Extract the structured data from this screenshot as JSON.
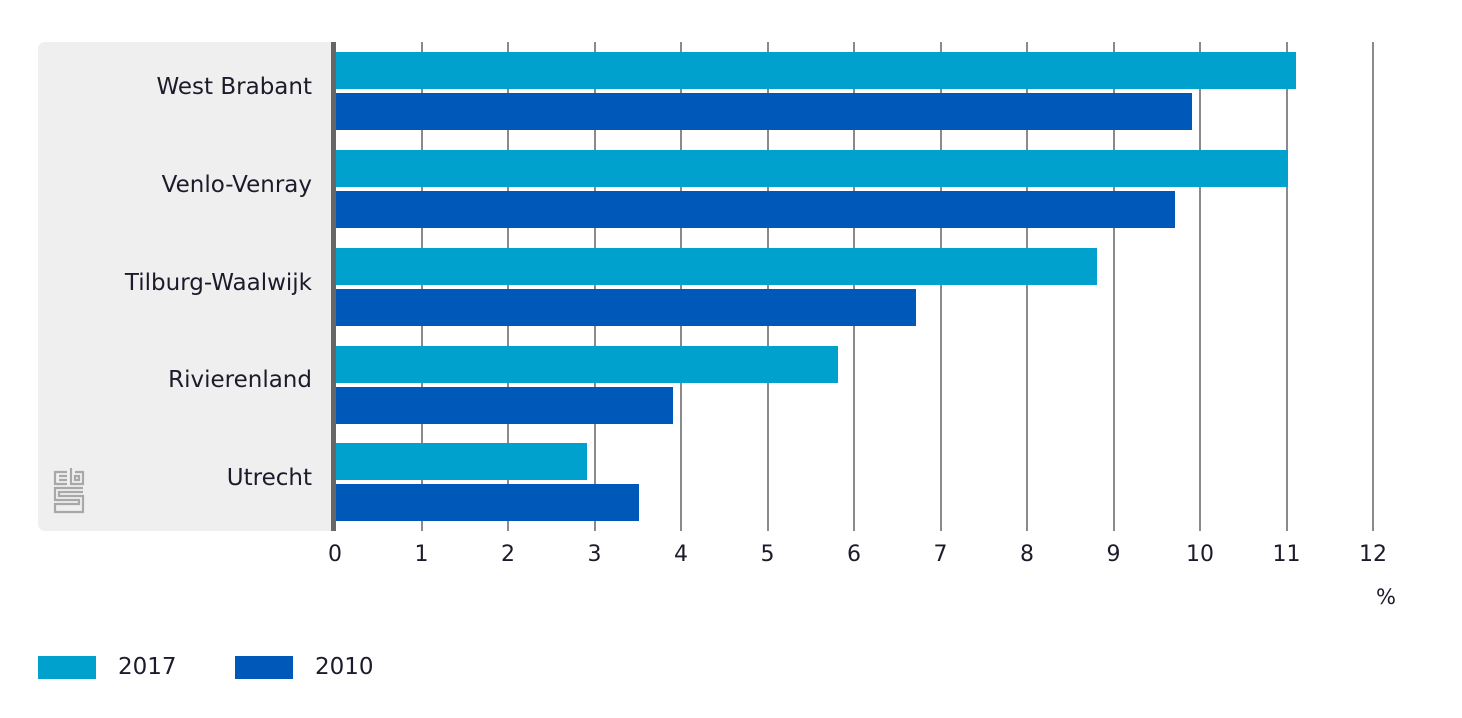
{
  "chart_data": {
    "type": "bar",
    "orientation": "horizontal",
    "title": "",
    "xlabel": "%",
    "ylabel": "",
    "categories": [
      "West Brabant",
      "Venlo-Venray",
      "Tilburg-Waalwijk",
      "Rivierenland",
      "Utrecht"
    ],
    "series": [
      {
        "name": "2017",
        "color": "#00a1cd",
        "values": [
          11.1,
          11.0,
          8.8,
          5.8,
          2.9
        ]
      },
      {
        "name": "2010",
        "color": "#0058b8",
        "values": [
          9.9,
          9.7,
          6.7,
          3.9,
          3.5
        ]
      }
    ],
    "xlim": [
      0,
      12
    ],
    "xticks": [
      "0",
      "1",
      "2",
      "3",
      "4",
      "5",
      "6",
      "7",
      "8",
      "9",
      "10",
      "11",
      "12"
    ],
    "grid": true,
    "legend_position": "bottom-left"
  },
  "labels": {
    "categories": [
      "West Brabant",
      "Venlo-Venray",
      "Tilburg-Waalwijk",
      "Rivierenland",
      "Utrecht"
    ],
    "unit": "%",
    "ticks": [
      "0",
      "1",
      "2",
      "3",
      "4",
      "5",
      "6",
      "7",
      "8",
      "9",
      "10",
      "11",
      "12"
    ]
  },
  "legend": {
    "items": [
      {
        "label": "2017",
        "color": "#00a1cd"
      },
      {
        "label": "2010",
        "color": "#0058b8"
      }
    ]
  },
  "logo": {
    "name": "cbs"
  }
}
